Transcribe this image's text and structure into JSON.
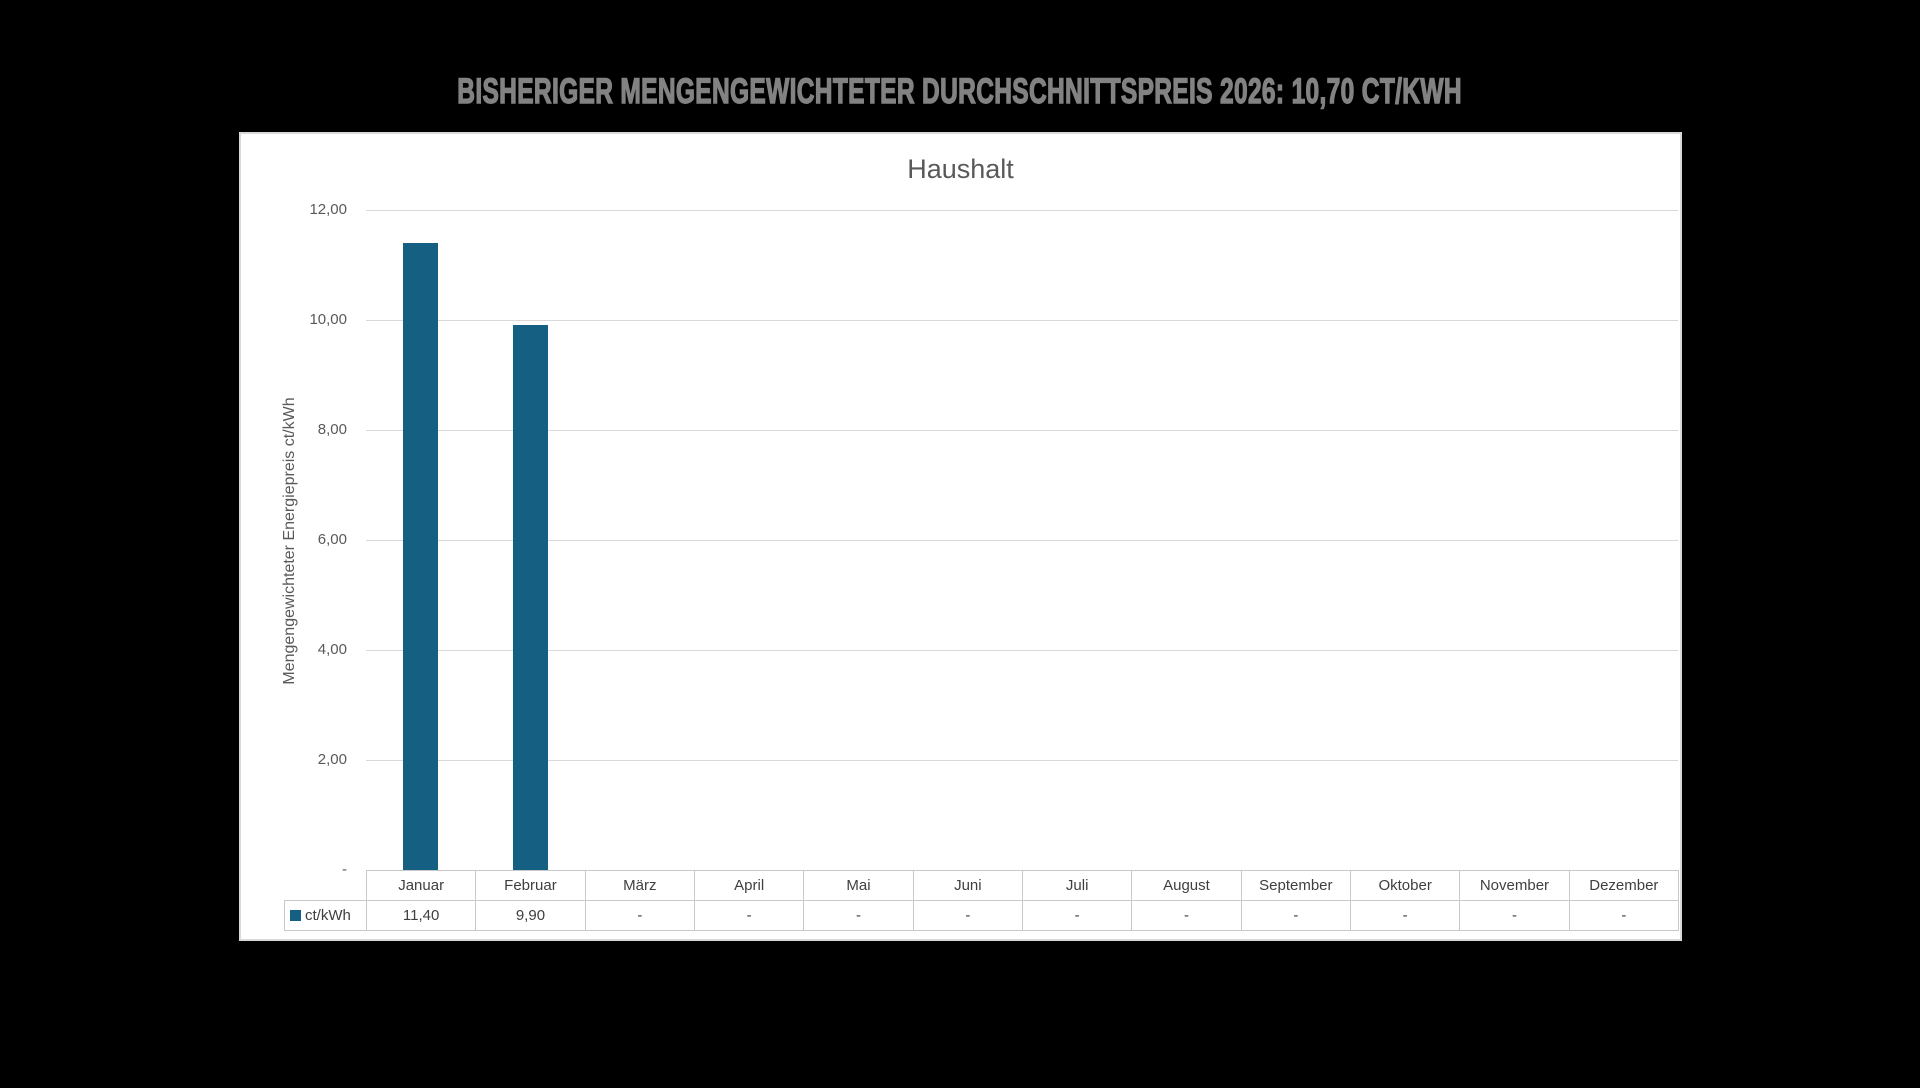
{
  "slide": {
    "title": "BISHERIGER MENGENGEWICHTETER DURCHSCHNITTSPREIS 2026: 10,70 CT/KWH"
  },
  "chart_data": {
    "type": "bar",
    "title": "Haushalt",
    "xlabel": "",
    "ylabel": "Mengengewichteter Energiepreis ct/kWh",
    "ylim": [
      0,
      12
    ],
    "ytick_values": [
      12,
      10,
      8,
      6,
      4,
      2,
      0
    ],
    "ytick_labels": [
      "12,00",
      "10,00",
      "8,00",
      "6,00",
      "4,00",
      "2,00",
      "-"
    ],
    "categories": [
      "Januar",
      "Februar",
      "März",
      "April",
      "Mai",
      "Juni",
      "Juli",
      "August",
      "September",
      "Oktober",
      "November",
      "Dezember"
    ],
    "series": [
      {
        "name": "ct/kWh",
        "values": [
          11.4,
          9.9,
          null,
          null,
          null,
          null,
          null,
          null,
          null,
          null,
          null,
          null
        ],
        "display_values": [
          "11,40",
          "9,90",
          "-",
          "-",
          "-",
          "-",
          "-",
          "-",
          "-",
          "-",
          "-",
          "-"
        ],
        "color": "#156082"
      }
    ],
    "grid": true,
    "has_data_table": true,
    "legend_position": "data-table-left"
  },
  "colors": {
    "page_background": "#000000",
    "chart_background": "#FFFFFF",
    "frame_border": "#D9D9D9",
    "gridline": "#D9D9D9",
    "table_border": "#C9C9C9",
    "bar": "#156082",
    "slide_title_text": "#828282",
    "chart_text": "#595959",
    "table_text": "#3F3F3F"
  }
}
